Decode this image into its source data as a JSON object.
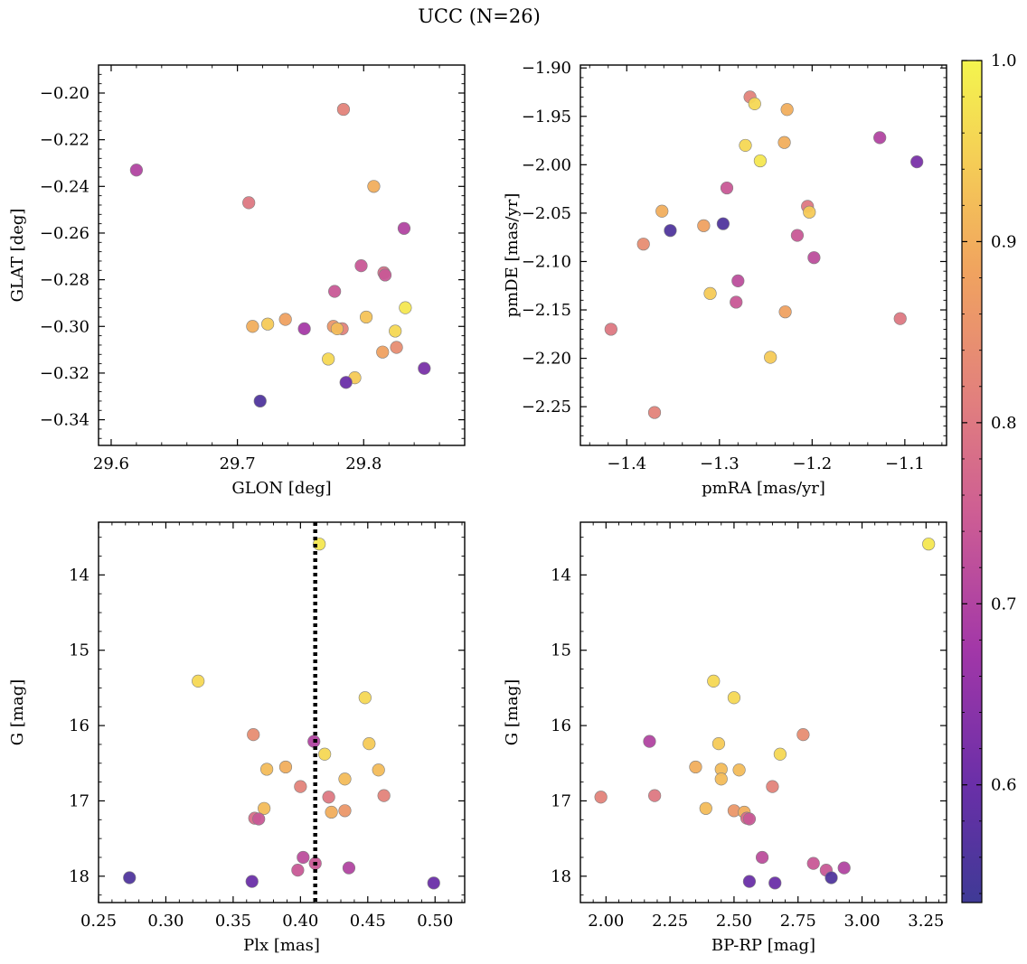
{
  "figure": {
    "title": "UCC (N=26)",
    "colormap": "plasma",
    "colorbar": {
      "range": [
        0.535,
        1.0
      ],
      "ticks": [
        0.6,
        0.7,
        0.8,
        0.9,
        1.0
      ],
      "tick_labels": [
        "0.6",
        "0.7",
        "0.8",
        "0.9",
        "1.0"
      ]
    }
  },
  "chart_data": [
    {
      "type": "scatter",
      "id": "glon-glat",
      "xlabel": "GLON [deg]",
      "ylabel": "GLAT [deg]",
      "xlim": [
        29.59,
        29.88
      ],
      "ylim": [
        -0.351,
        -0.188
      ],
      "y_inverted": false,
      "xticks": [
        29.6,
        29.7,
        29.8
      ],
      "xtick_labels": [
        "29.6",
        "29.7",
        "29.8"
      ],
      "yticks": [
        -0.34,
        -0.32,
        -0.3,
        -0.28,
        -0.26,
        -0.24,
        -0.22,
        -0.2
      ],
      "ytick_labels": [
        "−0.34",
        "−0.32",
        "−0.30",
        "−0.28",
        "−0.26",
        "−0.24",
        "−0.22",
        "−0.20"
      ],
      "vline": null,
      "points": [
        {
          "x": 29.62,
          "y": -0.233,
          "c": 0.7
        },
        {
          "x": 29.709,
          "y": -0.247,
          "c": 0.8
        },
        {
          "x": 29.784,
          "y": -0.207,
          "c": 0.82
        },
        {
          "x": 29.808,
          "y": -0.24,
          "c": 0.9
        },
        {
          "x": 29.832,
          "y": -0.258,
          "c": 0.7
        },
        {
          "x": 29.798,
          "y": -0.274,
          "c": 0.74
        },
        {
          "x": 29.816,
          "y": -0.277,
          "c": 0.78
        },
        {
          "x": 29.817,
          "y": -0.278,
          "c": 0.74
        },
        {
          "x": 29.777,
          "y": -0.285,
          "c": 0.74
        },
        {
          "x": 29.833,
          "y": -0.292,
          "c": 0.98
        },
        {
          "x": 29.802,
          "y": -0.296,
          "c": 0.93
        },
        {
          "x": 29.738,
          "y": -0.297,
          "c": 0.88
        },
        {
          "x": 29.712,
          "y": -0.3,
          "c": 0.9
        },
        {
          "x": 29.724,
          "y": -0.299,
          "c": 0.94
        },
        {
          "x": 29.776,
          "y": -0.3,
          "c": 0.86
        },
        {
          "x": 29.783,
          "y": -0.301,
          "c": 0.82
        },
        {
          "x": 29.779,
          "y": -0.301,
          "c": 0.92
        },
        {
          "x": 29.753,
          "y": -0.301,
          "c": 0.68
        },
        {
          "x": 29.825,
          "y": -0.302,
          "c": 0.96
        },
        {
          "x": 29.826,
          "y": -0.309,
          "c": 0.84
        },
        {
          "x": 29.815,
          "y": -0.311,
          "c": 0.88
        },
        {
          "x": 29.772,
          "y": -0.314,
          "c": 0.96
        },
        {
          "x": 29.848,
          "y": -0.318,
          "c": 0.62
        },
        {
          "x": 29.793,
          "y": -0.322,
          "c": 0.94
        },
        {
          "x": 29.786,
          "y": -0.324,
          "c": 0.6
        },
        {
          "x": 29.718,
          "y": -0.332,
          "c": 0.56
        }
      ]
    },
    {
      "type": "scatter",
      "id": "pmra-pmde",
      "xlabel": "pmRA [mas/yr]",
      "ylabel": "pmDE [mas/yr]",
      "xlim": [
        -1.45,
        -1.055
      ],
      "ylim": [
        -2.29,
        -1.897
      ],
      "y_inverted": false,
      "xticks": [
        -1.4,
        -1.3,
        -1.2,
        -1.1
      ],
      "xtick_labels": [
        "−1.4",
        "−1.3",
        "−1.2",
        "−1.1"
      ],
      "yticks": [
        -2.25,
        -2.2,
        -2.15,
        -2.1,
        -2.05,
        -2.0,
        -1.95,
        -1.9
      ],
      "ytick_labels": [
        "−2.25",
        "−2.20",
        "−2.15",
        "−2.10",
        "−2.05",
        "−2.00",
        "−1.95",
        "−1.90"
      ],
      "vline": null,
      "points": [
        {
          "x": -1.267,
          "y": -1.93,
          "c": 0.82
        },
        {
          "x": -1.262,
          "y": -1.937,
          "c": 0.96
        },
        {
          "x": -1.227,
          "y": -1.943,
          "c": 0.9
        },
        {
          "x": -1.272,
          "y": -1.98,
          "c": 0.96
        },
        {
          "x": -1.23,
          "y": -1.977,
          "c": 0.9
        },
        {
          "x": -1.256,
          "y": -1.996,
          "c": 0.98
        },
        {
          "x": -1.127,
          "y": -1.972,
          "c": 0.7
        },
        {
          "x": -1.087,
          "y": -1.997,
          "c": 0.62
        },
        {
          "x": -1.292,
          "y": -2.024,
          "c": 0.74
        },
        {
          "x": -1.205,
          "y": -2.043,
          "c": 0.8
        },
        {
          "x": -1.203,
          "y": -2.049,
          "c": 0.94
        },
        {
          "x": -1.362,
          "y": -2.048,
          "c": 0.9
        },
        {
          "x": -1.317,
          "y": -2.063,
          "c": 0.88
        },
        {
          "x": -1.296,
          "y": -2.061,
          "c": 0.56
        },
        {
          "x": -1.353,
          "y": -2.068,
          "c": 0.56
        },
        {
          "x": -1.216,
          "y": -2.073,
          "c": 0.74
        },
        {
          "x": -1.382,
          "y": -2.082,
          "c": 0.84
        },
        {
          "x": -1.198,
          "y": -2.096,
          "c": 0.72
        },
        {
          "x": -1.28,
          "y": -2.12,
          "c": 0.72
        },
        {
          "x": -1.31,
          "y": -2.133,
          "c": 0.94
        },
        {
          "x": -1.282,
          "y": -2.142,
          "c": 0.74
        },
        {
          "x": -1.229,
          "y": -2.152,
          "c": 0.88
        },
        {
          "x": -1.105,
          "y": -2.159,
          "c": 0.8
        },
        {
          "x": -1.417,
          "y": -2.17,
          "c": 0.8
        },
        {
          "x": -1.245,
          "y": -2.199,
          "c": 0.94
        },
        {
          "x": -1.37,
          "y": -2.256,
          "c": 0.82
        }
      ]
    },
    {
      "type": "scatter",
      "id": "plx-g",
      "xlabel": "Plx [mas]",
      "ylabel": "G [mag]",
      "xlim": [
        0.25,
        0.522
      ],
      "ylim": [
        13.3,
        18.35
      ],
      "y_inverted": true,
      "xticks": [
        0.25,
        0.3,
        0.35,
        0.4,
        0.45,
        0.5
      ],
      "xtick_labels": [
        "0.25",
        "0.30",
        "0.35",
        "0.40",
        "0.45",
        "0.50"
      ],
      "yticks": [
        14,
        15,
        16,
        17,
        18
      ],
      "ytick_labels": [
        "14",
        "15",
        "16",
        "17",
        "18"
      ],
      "vline": 0.411,
      "points": [
        {
          "x": 0.414,
          "y": 13.59,
          "c": 0.98
        },
        {
          "x": 0.324,
          "y": 15.41,
          "c": 0.96
        },
        {
          "x": 0.448,
          "y": 15.63,
          "c": 0.96
        },
        {
          "x": 0.365,
          "y": 16.12,
          "c": 0.84
        },
        {
          "x": 0.41,
          "y": 16.21,
          "c": 0.7
        },
        {
          "x": 0.451,
          "y": 16.24,
          "c": 0.94
        },
        {
          "x": 0.418,
          "y": 16.38,
          "c": 0.96
        },
        {
          "x": 0.389,
          "y": 16.55,
          "c": 0.9
        },
        {
          "x": 0.375,
          "y": 16.58,
          "c": 0.92
        },
        {
          "x": 0.458,
          "y": 16.59,
          "c": 0.92
        },
        {
          "x": 0.433,
          "y": 16.71,
          "c": 0.92
        },
        {
          "x": 0.4,
          "y": 16.81,
          "c": 0.82
        },
        {
          "x": 0.462,
          "y": 16.93,
          "c": 0.82
        },
        {
          "x": 0.421,
          "y": 16.95,
          "c": 0.8
        },
        {
          "x": 0.373,
          "y": 17.1,
          "c": 0.92
        },
        {
          "x": 0.433,
          "y": 17.13,
          "c": 0.86
        },
        {
          "x": 0.423,
          "y": 17.15,
          "c": 0.9
        },
        {
          "x": 0.366,
          "y": 17.23,
          "c": 0.78
        },
        {
          "x": 0.369,
          "y": 17.24,
          "c": 0.74
        },
        {
          "x": 0.402,
          "y": 17.75,
          "c": 0.72
        },
        {
          "x": 0.411,
          "y": 17.83,
          "c": 0.74
        },
        {
          "x": 0.436,
          "y": 17.89,
          "c": 0.7
        },
        {
          "x": 0.398,
          "y": 17.92,
          "c": 0.74
        },
        {
          "x": 0.273,
          "y": 18.02,
          "c": 0.56
        },
        {
          "x": 0.364,
          "y": 18.07,
          "c": 0.6
        },
        {
          "x": 0.499,
          "y": 18.09,
          "c": 0.6
        }
      ]
    },
    {
      "type": "scatter",
      "id": "bprp-g",
      "xlabel": "BP-RP [mag]",
      "ylabel": "G [mag]",
      "xlim": [
        1.9,
        3.33
      ],
      "ylim": [
        13.3,
        18.35
      ],
      "y_inverted": true,
      "xticks": [
        2.0,
        2.25,
        2.5,
        2.75,
        3.0,
        3.25
      ],
      "xtick_labels": [
        "2.00",
        "2.25",
        "2.50",
        "2.75",
        "3.00",
        "3.25"
      ],
      "yticks": [
        14,
        15,
        16,
        17,
        18
      ],
      "ytick_labels": [
        "14",
        "15",
        "16",
        "17",
        "18"
      ],
      "vline": null,
      "points": [
        {
          "x": 3.26,
          "y": 13.59,
          "c": 0.98
        },
        {
          "x": 2.42,
          "y": 15.41,
          "c": 0.96
        },
        {
          "x": 2.5,
          "y": 15.63,
          "c": 0.96
        },
        {
          "x": 2.77,
          "y": 16.12,
          "c": 0.84
        },
        {
          "x": 2.17,
          "y": 16.21,
          "c": 0.7
        },
        {
          "x": 2.44,
          "y": 16.24,
          "c": 0.94
        },
        {
          "x": 2.68,
          "y": 16.38,
          "c": 0.96
        },
        {
          "x": 2.35,
          "y": 16.55,
          "c": 0.9
        },
        {
          "x": 2.45,
          "y": 16.58,
          "c": 0.92
        },
        {
          "x": 2.52,
          "y": 16.59,
          "c": 0.92
        },
        {
          "x": 2.45,
          "y": 16.71,
          "c": 0.92
        },
        {
          "x": 2.65,
          "y": 16.81,
          "c": 0.82
        },
        {
          "x": 1.98,
          "y": 16.95,
          "c": 0.82
        },
        {
          "x": 2.19,
          "y": 16.93,
          "c": 0.8
        },
        {
          "x": 2.39,
          "y": 17.1,
          "c": 0.92
        },
        {
          "x": 2.5,
          "y": 17.13,
          "c": 0.86
        },
        {
          "x": 2.54,
          "y": 17.15,
          "c": 0.9
        },
        {
          "x": 2.55,
          "y": 17.23,
          "c": 0.78
        },
        {
          "x": 2.56,
          "y": 17.24,
          "c": 0.74
        },
        {
          "x": 2.61,
          "y": 17.75,
          "c": 0.72
        },
        {
          "x": 2.81,
          "y": 17.83,
          "c": 0.74
        },
        {
          "x": 2.93,
          "y": 17.89,
          "c": 0.7
        },
        {
          "x": 2.86,
          "y": 17.92,
          "c": 0.74
        },
        {
          "x": 2.88,
          "y": 18.02,
          "c": 0.56
        },
        {
          "x": 2.56,
          "y": 18.07,
          "c": 0.6
        },
        {
          "x": 2.66,
          "y": 18.09,
          "c": 0.6
        }
      ]
    }
  ]
}
